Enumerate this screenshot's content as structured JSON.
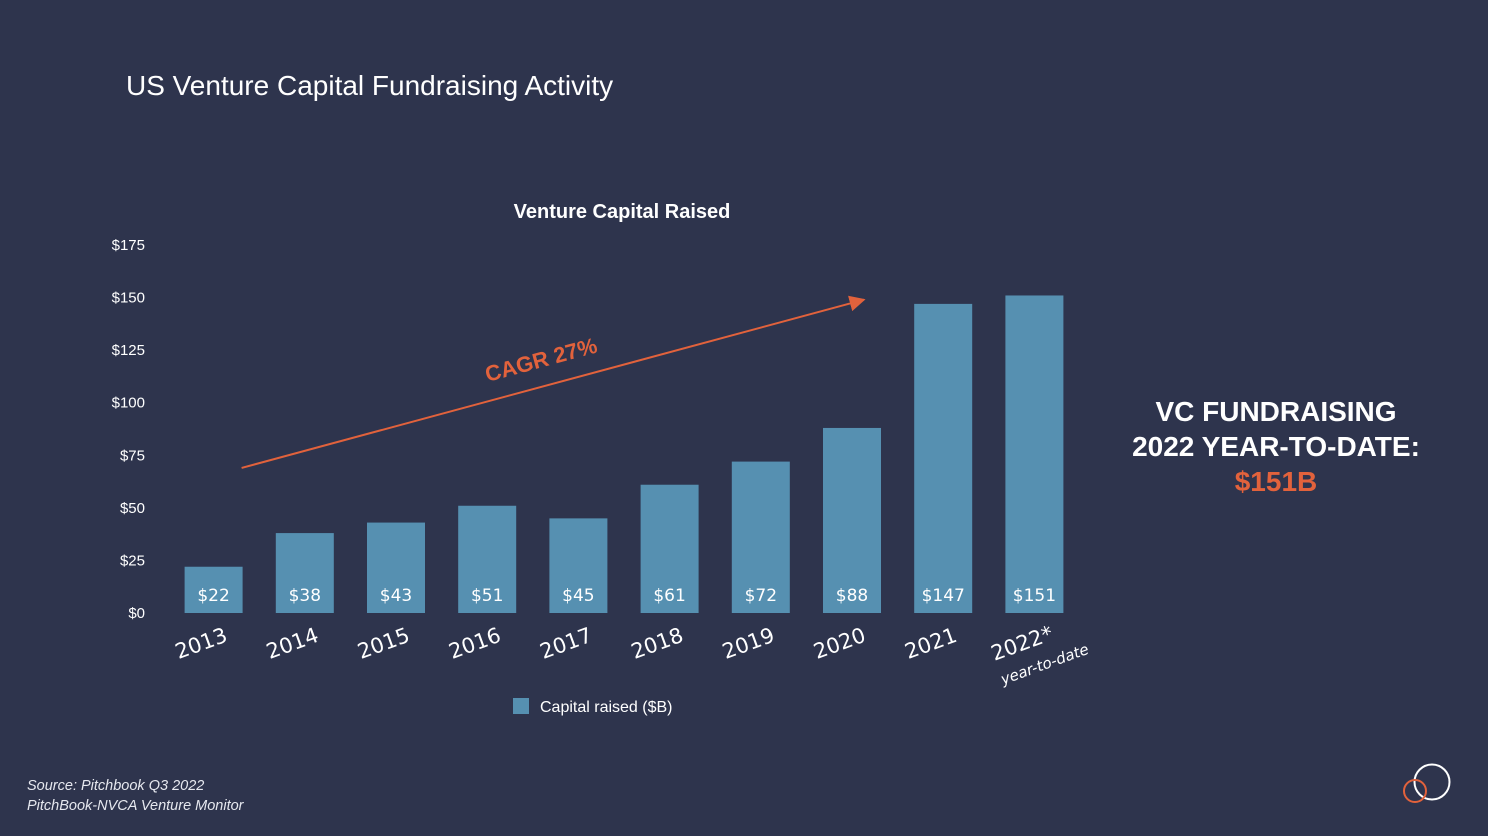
{
  "slide": {
    "title": "US Venture Capital Fundraising Activity",
    "callout": {
      "line1": "VC FUNDRAISING",
      "line2": "2022 YEAR-TO-DATE:",
      "value": "$151B"
    },
    "source": {
      "line1": "Source: Pitchbook Q3 2022",
      "line2": "PitchBook-NVCA Venture Monitor"
    },
    "logo_icon": "interlocking-circles-icon"
  },
  "colors": {
    "background": "#2e344d",
    "bar": "#5690b1",
    "accent": "#e2623c",
    "text": "#ffffff"
  },
  "chart_data": {
    "type": "bar",
    "title": "Venture Capital Raised",
    "xlabel": "",
    "ylabel": "",
    "categories": [
      "2013",
      "2014",
      "2015",
      "2016",
      "2017",
      "2018",
      "2019",
      "2020",
      "2021",
      "2022*"
    ],
    "category_sublabels": [
      "",
      "",
      "",
      "",
      "",
      "",
      "",
      "",
      "",
      "year-to-date"
    ],
    "series": [
      {
        "name": "Capital raised ($B)",
        "values": [
          22,
          38,
          43,
          51,
          45,
          61,
          72,
          88,
          147,
          151
        ]
      }
    ],
    "data_labels": [
      "$22",
      "$38",
      "$43",
      "$51",
      "$45",
      "$61",
      "$72",
      "$88",
      "$147",
      "$151"
    ],
    "yticks": [
      0,
      25,
      50,
      75,
      100,
      125,
      150,
      175
    ],
    "ytick_labels": [
      "$0",
      "$25",
      "$50",
      "$75",
      "$100",
      "$125",
      "$150",
      "$175"
    ],
    "ylim": [
      0,
      175
    ],
    "grid": false,
    "legend": {
      "position": "bottom"
    },
    "annotations": [
      {
        "text": "CAGR 27%",
        "type": "trend-arrow",
        "from": {
          "x": "2013",
          "y": 69
        },
        "to": {
          "x": "2020",
          "y": 149
        }
      }
    ]
  }
}
